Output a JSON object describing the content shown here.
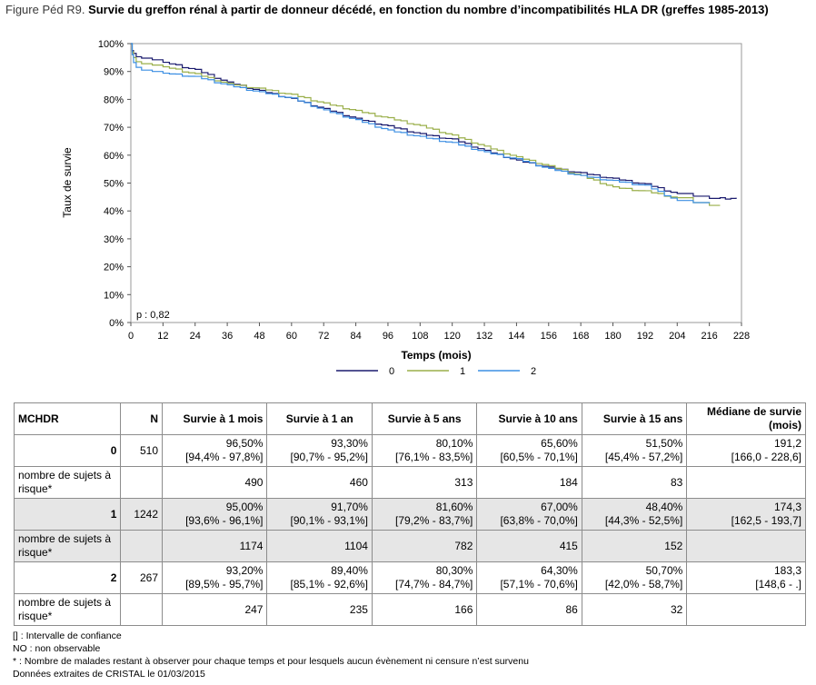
{
  "figure": {
    "label": "Figure Péd R9.",
    "title": "Survie du greffon rénal à partir de donneur décédé, en fonction du nombre d’incompatibilités HLA DR (greffes 1985-2013)"
  },
  "chart_data": {
    "type": "line",
    "xlabel": "Temps (mois)",
    "ylabel": "Taux de survie",
    "xlim": [
      0,
      228
    ],
    "ylim": [
      0,
      100
    ],
    "xticks": [
      0,
      12,
      24,
      36,
      48,
      60,
      72,
      84,
      96,
      108,
      120,
      132,
      144,
      156,
      168,
      180,
      192,
      204,
      216,
      228
    ],
    "yticks": [
      "0%",
      "10%",
      "20%",
      "30%",
      "40%",
      "50%",
      "60%",
      "70%",
      "80%",
      "90%",
      "100%"
    ],
    "annotation": "p : 0,82",
    "grid": false,
    "legend_position": "bottom",
    "series": [
      {
        "name": "0",
        "color": "#1a1a6e",
        "points": [
          [
            0,
            100
          ],
          [
            0.5,
            97.5
          ],
          [
            1,
            96.5
          ],
          [
            2,
            95.3
          ],
          [
            4,
            94.8
          ],
          [
            8,
            94.2
          ],
          [
            12,
            93.3
          ],
          [
            24,
            90.5
          ],
          [
            36,
            86
          ],
          [
            48,
            83
          ],
          [
            60,
            80.1
          ],
          [
            72,
            76.5
          ],
          [
            84,
            73
          ],
          [
            96,
            70.3
          ],
          [
            108,
            67.5
          ],
          [
            120,
            65.6
          ],
          [
            132,
            61.5
          ],
          [
            144,
            58
          ],
          [
            156,
            55.5
          ],
          [
            168,
            53.5
          ],
          [
            180,
            51.5
          ],
          [
            192,
            49.5
          ],
          [
            204,
            46
          ],
          [
            210,
            45.3
          ],
          [
            216,
            44.5
          ],
          [
            226,
            44.5
          ]
        ]
      },
      {
        "name": "1",
        "color": "#9aaf4a",
        "points": [
          [
            0,
            100
          ],
          [
            0.5,
            97
          ],
          [
            1,
            95
          ],
          [
            2,
            93.5
          ],
          [
            4,
            92.8
          ],
          [
            8,
            92.3
          ],
          [
            12,
            91.7
          ],
          [
            24,
            89
          ],
          [
            36,
            85.5
          ],
          [
            48,
            83.8
          ],
          [
            60,
            81.6
          ],
          [
            72,
            78.5
          ],
          [
            84,
            75.8
          ],
          [
            96,
            73.2
          ],
          [
            108,
            70.4
          ],
          [
            120,
            67
          ],
          [
            132,
            63
          ],
          [
            144,
            59.2
          ],
          [
            156,
            56
          ],
          [
            168,
            52.5
          ],
          [
            180,
            48.4
          ],
          [
            192,
            47
          ],
          [
            204,
            44.5
          ],
          [
            210,
            43
          ],
          [
            216,
            42
          ],
          [
            220,
            42
          ]
        ]
      },
      {
        "name": "2",
        "color": "#3c8fe3",
        "points": [
          [
            0,
            100
          ],
          [
            0.5,
            96
          ],
          [
            1,
            93.2
          ],
          [
            2,
            91.5
          ],
          [
            4,
            90.5
          ],
          [
            8,
            90
          ],
          [
            12,
            89.4
          ],
          [
            24,
            88
          ],
          [
            36,
            85
          ],
          [
            48,
            82.5
          ],
          [
            60,
            80.3
          ],
          [
            72,
            76
          ],
          [
            84,
            72.5
          ],
          [
            96,
            68.8
          ],
          [
            108,
            66.5
          ],
          [
            120,
            64.3
          ],
          [
            132,
            61
          ],
          [
            144,
            58.5
          ],
          [
            156,
            55
          ],
          [
            168,
            52.5
          ],
          [
            180,
            50.7
          ],
          [
            192,
            49
          ],
          [
            204,
            43.5
          ],
          [
            210,
            43
          ],
          [
            216,
            42.8
          ]
        ]
      }
    ]
  },
  "table": {
    "headers": {
      "mchdr": "MCHDR",
      "n": "N",
      "s1m": "Survie à 1 mois",
      "s1a": "Survie à 1 an",
      "s5a": "Survie à 5 ans",
      "s10a": "Survie à 10 ans",
      "s15a": "Survie à 15 ans",
      "med": "Médiane de survie (mois)"
    },
    "risk_label": "nombre de sujets à risque*",
    "groups": [
      {
        "group": "0",
        "n": "510",
        "v": [
          "96,50%",
          "93,30%",
          "80,10%",
          "65,60%",
          "51,50%",
          "191,2"
        ],
        "ci": [
          "[94,4% - 97,8%]",
          "[90,7% - 95,2%]",
          "[76,1% - 83,5%]",
          "[60,5% - 70,1%]",
          "[45,4% - 57,2%]",
          "[166,0 - 228,6]"
        ],
        "risk": [
          "490",
          "460",
          "313",
          "184",
          "83"
        ]
      },
      {
        "group": "1",
        "n": "1242",
        "v": [
          "95,00%",
          "91,70%",
          "81,60%",
          "67,00%",
          "48,40%",
          "174,3"
        ],
        "ci": [
          "[93,6% - 96,1%]",
          "[90,1% - 93,1%]",
          "[79,2% - 83,7%]",
          "[63,8% - 70,0%]",
          "[44,3% - 52,5%]",
          "[162,5 - 193,7]"
        ],
        "risk": [
          "1174",
          "1104",
          "782",
          "415",
          "152"
        ]
      },
      {
        "group": "2",
        "n": "267",
        "v": [
          "93,20%",
          "89,40%",
          "80,30%",
          "64,30%",
          "50,70%",
          "183,3"
        ],
        "ci": [
          "[89,5% - 95,7%]",
          "[85,1% - 92,6%]",
          "[74,7% - 84,7%]",
          "[57,1% - 70,6%]",
          "[42,0% - 58,7%]",
          "[148,6 - .]"
        ],
        "risk": [
          "247",
          "235",
          "166",
          "86",
          "32"
        ]
      }
    ]
  },
  "notes": [
    "[] : Intervalle de confiance",
    "NO : non observable",
    "* : Nombre de malades restant à observer pour chaque temps et pour lesquels aucun évènement ni censure n’est survenu",
    "Données extraites de CRISTAL le 01/03/2015"
  ]
}
